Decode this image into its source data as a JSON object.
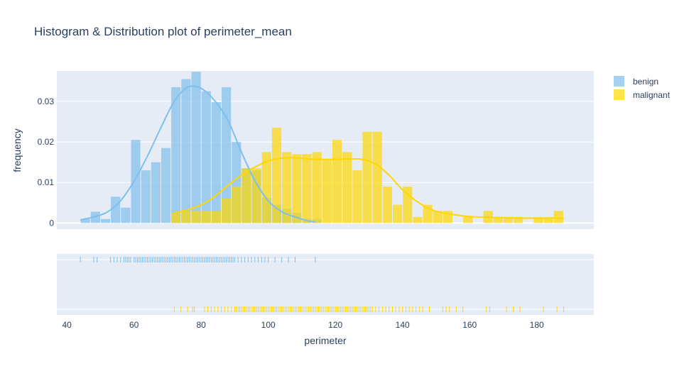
{
  "chart_data": {
    "type": "histogram",
    "title": "Histogram & Distribution plot of perimeter_mean",
    "xlabel": "perimeter",
    "ylabel": "frequency",
    "xlim": [
      37,
      197
    ],
    "ylim": [
      -0.0015,
      0.0375
    ],
    "x_ticks": [
      40,
      60,
      80,
      100,
      120,
      140,
      160,
      180
    ],
    "y_ticks": [
      0,
      0.01,
      0.02,
      0.03
    ],
    "y_tick_labels": [
      "0",
      "0.01",
      "0.02",
      "0.03"
    ],
    "bin_size": 3,
    "legend_position": "top-right",
    "series": [
      {
        "name": "benign",
        "color": "#7FBFED",
        "bins": [
          {
            "x0": 44,
            "y": 0.001
          },
          {
            "x0": 47,
            "y": 0.0028
          },
          {
            "x0": 50,
            "y": 0.001
          },
          {
            "x0": 53,
            "y": 0.0065
          },
          {
            "x0": 56,
            "y": 0.0038
          },
          {
            "x0": 59,
            "y": 0.0205
          },
          {
            "x0": 62,
            "y": 0.013
          },
          {
            "x0": 65,
            "y": 0.015
          },
          {
            "x0": 68,
            "y": 0.0185
          },
          {
            "x0": 71,
            "y": 0.0335
          },
          {
            "x0": 74,
            "y": 0.0355
          },
          {
            "x0": 77,
            "y": 0.0373
          },
          {
            "x0": 80,
            "y": 0.0325
          },
          {
            "x0": 83,
            "y": 0.0298
          },
          {
            "x0": 86,
            "y": 0.0335
          },
          {
            "x0": 89,
            "y": 0.02
          },
          {
            "x0": 92,
            "y": 0.0135
          },
          {
            "x0": 95,
            "y": 0.013
          },
          {
            "x0": 98,
            "y": 0.0062
          },
          {
            "x0": 101,
            "y": 0.0045
          },
          {
            "x0": 104,
            "y": 0.0035
          },
          {
            "x0": 107,
            "y": 0.0025
          },
          {
            "x0": 110,
            "y": 0.001
          },
          {
            "x0": 113,
            "y": 0.001
          }
        ],
        "kde": [
          [
            44,
            0.0008
          ],
          [
            48,
            0.0015
          ],
          [
            52,
            0.0027
          ],
          [
            56,
            0.0055
          ],
          [
            60,
            0.0103
          ],
          [
            64,
            0.0165
          ],
          [
            68,
            0.0235
          ],
          [
            72,
            0.03
          ],
          [
            76,
            0.0335
          ],
          [
            80,
            0.0332
          ],
          [
            84,
            0.0302
          ],
          [
            88,
            0.0253
          ],
          [
            92,
            0.0175
          ],
          [
            96,
            0.0105
          ],
          [
            100,
            0.0055
          ],
          [
            104,
            0.0028
          ],
          [
            108,
            0.0015
          ],
          [
            112,
            0.0005
          ],
          [
            114,
            0.0003
          ]
        ],
        "rug": [
          44,
          48,
          49,
          53,
          54,
          55,
          56,
          57,
          57.5,
          58,
          58.5,
          59,
          60,
          60.5,
          61,
          61.5,
          62,
          62.5,
          63,
          63.5,
          64,
          64.5,
          65,
          65.5,
          66,
          66.5,
          67,
          67.5,
          68,
          68.5,
          69,
          69.5,
          70,
          70.5,
          71,
          71.5,
          72,
          72.5,
          73,
          73.5,
          74,
          74.5,
          75,
          75.5,
          76,
          76.5,
          77,
          77.5,
          78,
          78.5,
          79,
          79.5,
          80,
          80.5,
          81,
          81.5,
          82,
          82.5,
          83,
          83.5,
          84,
          84.5,
          85,
          85.5,
          86,
          86.5,
          87,
          87.5,
          88,
          88.5,
          89,
          89.5,
          90,
          91,
          92,
          93,
          94,
          95,
          96,
          97,
          98,
          99,
          100,
          102,
          104,
          106,
          108,
          114
        ]
      },
      {
        "name": "malignant",
        "color": "#FFD700",
        "bins": [
          {
            "x0": 71,
            "y": 0.0025
          },
          {
            "x0": 74,
            "y": 0.003
          },
          {
            "x0": 77,
            "y": 0.003
          },
          {
            "x0": 80,
            "y": 0.003
          },
          {
            "x0": 83,
            "y": 0.003
          },
          {
            "x0": 86,
            "y": 0.006
          },
          {
            "x0": 89,
            "y": 0.009
          },
          {
            "x0": 92,
            "y": 0.0135
          },
          {
            "x0": 95,
            "y": 0.0135
          },
          {
            "x0": 98,
            "y": 0.0175
          },
          {
            "x0": 101,
            "y": 0.0235
          },
          {
            "x0": 104,
            "y": 0.0175
          },
          {
            "x0": 107,
            "y": 0.017
          },
          {
            "x0": 110,
            "y": 0.017
          },
          {
            "x0": 113,
            "y": 0.0175
          },
          {
            "x0": 116,
            "y": 0.0155
          },
          {
            "x0": 119,
            "y": 0.0205
          },
          {
            "x0": 122,
            "y": 0.0175
          },
          {
            "x0": 125,
            "y": 0.013
          },
          {
            "x0": 128,
            "y": 0.0225
          },
          {
            "x0": 131,
            "y": 0.0225
          },
          {
            "x0": 134,
            "y": 0.009
          },
          {
            "x0": 137,
            "y": 0.0045
          },
          {
            "x0": 140,
            "y": 0.009
          },
          {
            "x0": 143,
            "y": 0.0015
          },
          {
            "x0": 146,
            "y": 0.0045
          },
          {
            "x0": 149,
            "y": 0.003
          },
          {
            "x0": 152,
            "y": 0.003
          },
          {
            "x0": 155,
            "y": 0.0
          },
          {
            "x0": 158,
            "y": 0.0015
          },
          {
            "x0": 161,
            "y": 0.0
          },
          {
            "x0": 164,
            "y": 0.003
          },
          {
            "x0": 167,
            "y": 0.0015
          },
          {
            "x0": 170,
            "y": 0.0015
          },
          {
            "x0": 173,
            "y": 0.0015
          },
          {
            "x0": 176,
            "y": 0.0
          },
          {
            "x0": 179,
            "y": 0.0015
          },
          {
            "x0": 182,
            "y": 0.0015
          },
          {
            "x0": 185,
            "y": 0.003
          }
        ],
        "kde": [
          [
            72,
            0.0025
          ],
          [
            76,
            0.0033
          ],
          [
            80,
            0.0045
          ],
          [
            84,
            0.0065
          ],
          [
            88,
            0.0093
          ],
          [
            92,
            0.0118
          ],
          [
            96,
            0.0138
          ],
          [
            100,
            0.0153
          ],
          [
            104,
            0.016
          ],
          [
            108,
            0.0161
          ],
          [
            112,
            0.0158
          ],
          [
            116,
            0.0157
          ],
          [
            120,
            0.0157
          ],
          [
            124,
            0.0158
          ],
          [
            128,
            0.0157
          ],
          [
            132,
            0.0145
          ],
          [
            136,
            0.0118
          ],
          [
            140,
            0.0082
          ],
          [
            144,
            0.0055
          ],
          [
            148,
            0.0035
          ],
          [
            152,
            0.0025
          ],
          [
            156,
            0.002
          ],
          [
            160,
            0.0016
          ],
          [
            166,
            0.0014
          ],
          [
            172,
            0.0013
          ],
          [
            178,
            0.0012
          ],
          [
            184,
            0.0012
          ],
          [
            188,
            0.0012
          ]
        ],
        "rug": [
          72,
          74,
          76,
          77.5,
          78,
          81,
          82,
          83,
          84,
          85,
          86,
          87,
          88,
          89,
          90,
          90.5,
          91,
          91.5,
          92,
          92.5,
          93,
          93.5,
          94,
          94.5,
          95,
          95.5,
          96,
          96.5,
          97,
          97.5,
          98,
          98.5,
          99,
          99.5,
          100,
          100.5,
          101,
          101.5,
          102,
          102.5,
          103,
          103.5,
          104,
          104.5,
          105,
          105.5,
          106,
          106.5,
          107,
          107.5,
          108,
          108.5,
          109,
          109.5,
          110,
          110.5,
          111,
          111.5,
          112,
          112.5,
          113,
          113.5,
          114,
          114.5,
          115,
          115.5,
          116,
          116.5,
          117,
          117.5,
          118,
          118.5,
          119,
          119.5,
          120,
          120.5,
          121,
          121.5,
          122,
          122.5,
          123,
          123.5,
          124,
          124.5,
          125,
          125.5,
          126,
          126.5,
          127,
          127.5,
          128,
          128.5,
          129,
          129.5,
          130,
          130.5,
          131,
          132,
          133,
          134,
          135,
          136,
          137,
          138,
          139,
          140,
          141,
          142,
          143,
          144,
          145,
          146,
          148,
          152,
          153,
          154,
          156,
          158,
          165,
          166,
          171,
          173,
          175,
          182,
          186,
          188
        ]
      }
    ]
  }
}
